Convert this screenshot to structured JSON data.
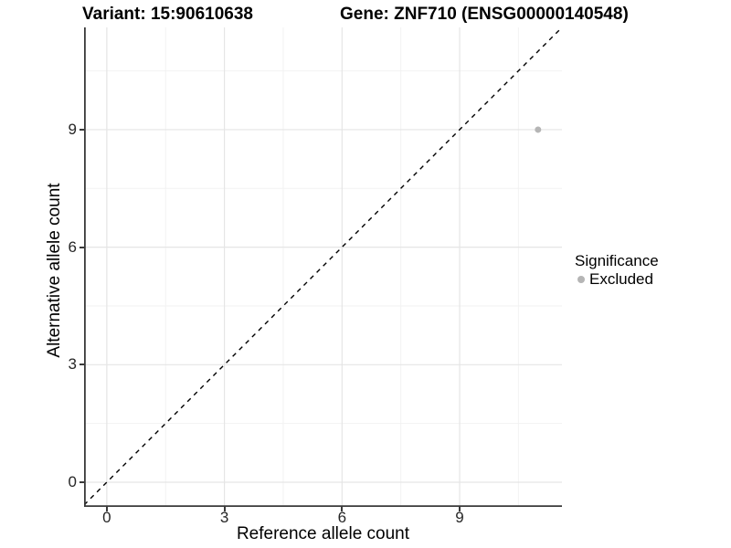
{
  "figure": {
    "background": "#ffffff"
  },
  "chart_data": {
    "type": "scatter",
    "title_left": "Variant: 15:90610638",
    "title_right": "Gene: ZNF710 (ENSG00000140548)",
    "xlabel": "Reference allele count",
    "ylabel": "Alternative allele count",
    "xlim": [
      -0.58,
      11.61
    ],
    "ylim": [
      -0.63,
      11.61
    ],
    "x_major_ticks": [
      0,
      3,
      6,
      9
    ],
    "y_major_ticks": [
      0,
      3,
      6,
      9
    ],
    "x_minor_gridlines": [
      1.5,
      4.5,
      7.5,
      10.5
    ],
    "y_minor_gridlines": [
      1.5,
      4.5,
      7.5,
      10.5
    ],
    "grid": true,
    "identity_line": {
      "slope": 1,
      "intercept": 0,
      "style": "dashed",
      "color": "#000000"
    },
    "series": [
      {
        "name": "Excluded",
        "color": "#b5b5b5",
        "point_radius": 3.5,
        "points": [
          {
            "x": 11,
            "y": 9
          }
        ]
      }
    ],
    "legend": {
      "position": "right",
      "title": "Significance",
      "items": [
        {
          "label": "Excluded",
          "color": "#b5b5b5"
        }
      ]
    },
    "colors": {
      "grid_major": "#e5e5e5",
      "grid_minor": "#f2f2f2",
      "axis_line": "#3a3a3a",
      "tick_mark": "#3a3a3a",
      "tick_text": "#262626"
    }
  }
}
